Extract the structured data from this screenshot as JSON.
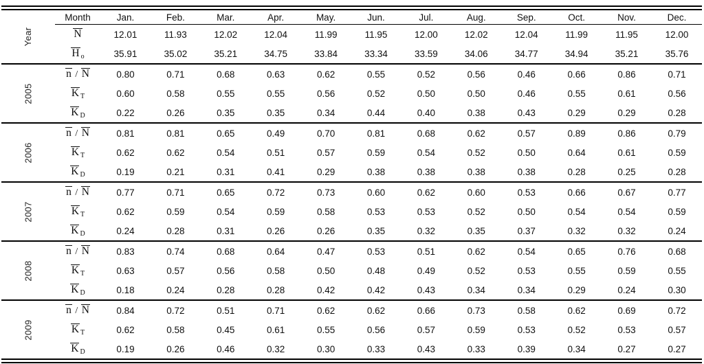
{
  "table": {
    "corner_label": "Year",
    "month_col_label": "Month",
    "months": [
      "Jan.",
      "Feb.",
      "Mar.",
      "Apr.",
      "May.",
      "Jun.",
      "Jul.",
      "Aug.",
      "Sep.",
      "Oct.",
      "Nov.",
      "Dec."
    ],
    "header_rows": [
      {
        "id": "N-mean",
        "label": {
          "parts": [
            {
              "t": "N",
              "ol": true
            }
          ]
        },
        "values": [
          "12.01",
          "11.93",
          "12.02",
          "12.04",
          "11.99",
          "11.95",
          "12.00",
          "12.02",
          "12.04",
          "11.99",
          "11.95",
          "12.00"
        ]
      },
      {
        "id": "Ho-mean",
        "label": {
          "parts": [
            {
              "t": "H",
              "ol": true
            },
            {
              "t": "o",
              "sub": true
            }
          ]
        },
        "values": [
          "35.91",
          "35.02",
          "35.21",
          "34.75",
          "33.84",
          "33.34",
          "33.59",
          "34.06",
          "34.77",
          "34.94",
          "35.21",
          "35.76"
        ]
      }
    ],
    "year_blocks": [
      {
        "year": "2005",
        "rows": [
          {
            "id": "n-over-N",
            "label": {
              "parts": [
                {
                  "t": "n",
                  "ol": true
                },
                {
                  "t": " / "
                },
                {
                  "t": "N",
                  "ol": true
                }
              ]
            },
            "values": [
              "0.80",
              "0.71",
              "0.68",
              "0.63",
              "0.62",
              "0.55",
              "0.52",
              "0.56",
              "0.46",
              "0.66",
              "0.86",
              "0.71"
            ]
          },
          {
            "id": "K-T",
            "label": {
              "parts": [
                {
                  "t": "K",
                  "ol": true
                },
                {
                  "t": "T",
                  "sub": true
                }
              ]
            },
            "values": [
              "0.60",
              "0.58",
              "0.55",
              "0.55",
              "0.56",
              "0.52",
              "0.50",
              "0.50",
              "0.46",
              "0.55",
              "0.61",
              "0.56"
            ]
          },
          {
            "id": "K-D",
            "label": {
              "parts": [
                {
                  "t": "K",
                  "ol": true
                },
                {
                  "t": "D",
                  "sub": true
                }
              ]
            },
            "values": [
              "0.22",
              "0.26",
              "0.35",
              "0.35",
              "0.34",
              "0.44",
              "0.40",
              "0.38",
              "0.43",
              "0.29",
              "0.29",
              "0.28"
            ]
          }
        ]
      },
      {
        "year": "2006",
        "rows": [
          {
            "id": "n-over-N",
            "label": {
              "parts": [
                {
                  "t": "n",
                  "ol": true
                },
                {
                  "t": " / "
                },
                {
                  "t": "N",
                  "ol": true
                }
              ]
            },
            "values": [
              "0.81",
              "0.81",
              "0.65",
              "0.49",
              "0.70",
              "0.81",
              "0.68",
              "0.62",
              "0.57",
              "0.89",
              "0.86",
              "0.79"
            ]
          },
          {
            "id": "K-T",
            "label": {
              "parts": [
                {
                  "t": "K",
                  "ol": true
                },
                {
                  "t": "T",
                  "sub": true
                }
              ]
            },
            "values": [
              "0.62",
              "0.62",
              "0.54",
              "0.51",
              "0.57",
              "0.59",
              "0.54",
              "0.52",
              "0.50",
              "0.64",
              "0.61",
              "0.59"
            ]
          },
          {
            "id": "K-D",
            "label": {
              "parts": [
                {
                  "t": "K",
                  "ol": true
                },
                {
                  "t": "D",
                  "sub": true
                }
              ]
            },
            "values": [
              "0.19",
              "0.21",
              "0.31",
              "0.41",
              "0.29",
              "0.38",
              "0.38",
              "0.38",
              "0.38",
              "0.28",
              "0.25",
              "0.28"
            ]
          }
        ]
      },
      {
        "year": "2007",
        "rows": [
          {
            "id": "n-over-N",
            "label": {
              "parts": [
                {
                  "t": "n",
                  "ol": true
                },
                {
                  "t": " / "
                },
                {
                  "t": "N",
                  "ol": true
                }
              ]
            },
            "values": [
              "0.77",
              "0.71",
              "0.65",
              "0.72",
              "0.73",
              "0.60",
              "0.62",
              "0.60",
              "0.53",
              "0.66",
              "0.67",
              "0.77"
            ]
          },
          {
            "id": "K-T",
            "label": {
              "parts": [
                {
                  "t": "K",
                  "ol": true
                },
                {
                  "t": "T",
                  "sub": true
                }
              ]
            },
            "values": [
              "0.62",
              "0.59",
              "0.54",
              "0.59",
              "0.58",
              "0.53",
              "0.53",
              "0.52",
              "0.50",
              "0.54",
              "0.54",
              "0.59"
            ]
          },
          {
            "id": "K-D",
            "label": {
              "parts": [
                {
                  "t": "K",
                  "ol": true
                },
                {
                  "t": "D",
                  "sub": true
                }
              ]
            },
            "values": [
              "0.24",
              "0.28",
              "0.31",
              "0.26",
              "0.26",
              "0.35",
              "0.32",
              "0.35",
              "0.37",
              "0.32",
              "0.32",
              "0.24"
            ]
          }
        ]
      },
      {
        "year": "2008",
        "rows": [
          {
            "id": "n-over-N",
            "label": {
              "parts": [
                {
                  "t": "n",
                  "ol": true
                },
                {
                  "t": " / "
                },
                {
                  "t": "N",
                  "ol": true
                }
              ]
            },
            "values": [
              "0.83",
              "0.74",
              "0.68",
              "0.64",
              "0.47",
              "0.53",
              "0.51",
              "0.62",
              "0.54",
              "0.65",
              "0.76",
              "0.68"
            ]
          },
          {
            "id": "K-T",
            "label": {
              "parts": [
                {
                  "t": "K",
                  "ol": true
                },
                {
                  "t": "T",
                  "sub": true
                }
              ]
            },
            "values": [
              "0.63",
              "0.57",
              "0.56",
              "0.58",
              "0.50",
              "0.48",
              "0.49",
              "0.52",
              "0.53",
              "0.55",
              "0.59",
              "0.55"
            ]
          },
          {
            "id": "K-D",
            "label": {
              "parts": [
                {
                  "t": "K",
                  "ol": true
                },
                {
                  "t": "D",
                  "sub": true
                }
              ]
            },
            "values": [
              "0.18",
              "0.24",
              "0.28",
              "0.28",
              "0.42",
              "0.42",
              "0.43",
              "0.34",
              "0.34",
              "0.29",
              "0.24",
              "0.30"
            ]
          }
        ]
      },
      {
        "year": "2009",
        "rows": [
          {
            "id": "n-over-N",
            "label": {
              "parts": [
                {
                  "t": "n",
                  "ol": true
                },
                {
                  "t": " / "
                },
                {
                  "t": "N",
                  "ol": true
                }
              ]
            },
            "values": [
              "0.84",
              "0.72",
              "0.51",
              "0.71",
              "0.62",
              "0.62",
              "0.66",
              "0.73",
              "0.58",
              "0.62",
              "0.69",
              "0.72"
            ]
          },
          {
            "id": "K-T",
            "label": {
              "parts": [
                {
                  "t": "K",
                  "ol": true
                },
                {
                  "t": "T",
                  "sub": true
                }
              ]
            },
            "values": [
              "0.62",
              "0.58",
              "0.45",
              "0.61",
              "0.55",
              "0.56",
              "0.57",
              "0.59",
              "0.53",
              "0.52",
              "0.53",
              "0.57"
            ]
          },
          {
            "id": "K-D",
            "label": {
              "parts": [
                {
                  "t": "K",
                  "ol": true
                },
                {
                  "t": "D",
                  "sub": true
                }
              ]
            },
            "values": [
              "0.19",
              "0.26",
              "0.46",
              "0.32",
              "0.30",
              "0.33",
              "0.43",
              "0.33",
              "0.39",
              "0.34",
              "0.27",
              "0.27"
            ]
          }
        ]
      }
    ]
  }
}
